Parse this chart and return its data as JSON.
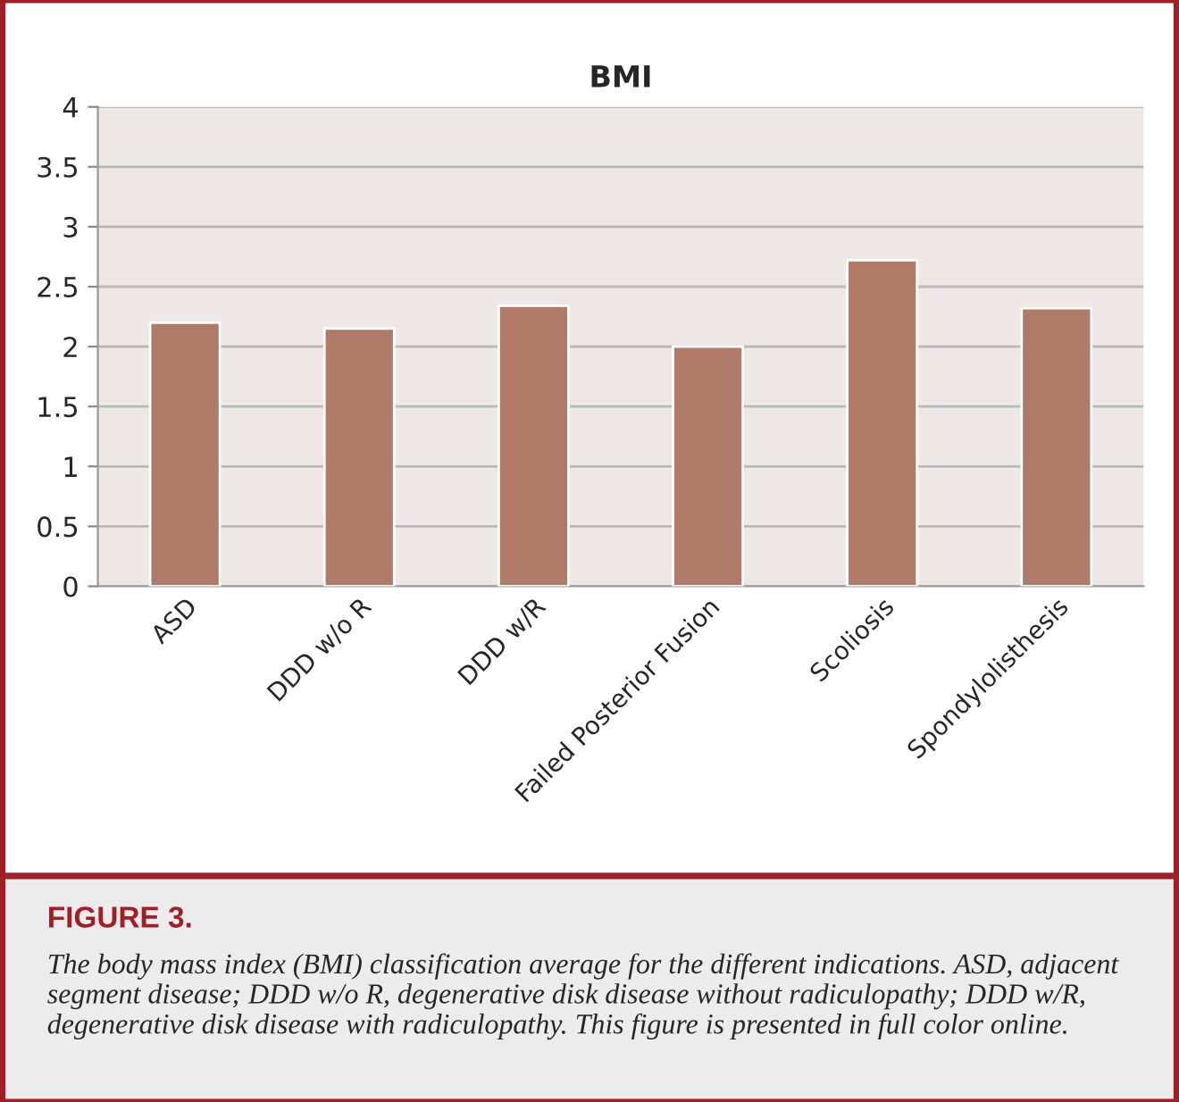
{
  "chart_data": {
    "type": "bar",
    "title": "BMI",
    "categories": [
      "ASD",
      "DDD w/o R",
      "DDD w/R",
      "Failed Posterior Fusion",
      "Scoliosis",
      "Spondylolisthesis"
    ],
    "values": [
      2.2,
      2.15,
      2.34,
      2.0,
      2.72,
      2.32
    ],
    "color": "#b07a68",
    "ylim": [
      0,
      4
    ],
    "yticks": [
      0,
      0.5,
      1,
      1.5,
      2,
      2.5,
      3,
      3.5,
      4
    ],
    "grid": "y",
    "legend": false,
    "annotations": [
      "FIGURE 3.",
      "The body mass index (BMI) classification average for the different indications. ASD, adjacent segment disease; DDD w/o R, degenerative disk disease without radiculopathy; DDD w/R, degenerative disk disease with radiculopathy. This figure is presented in full color online."
    ]
  }
}
